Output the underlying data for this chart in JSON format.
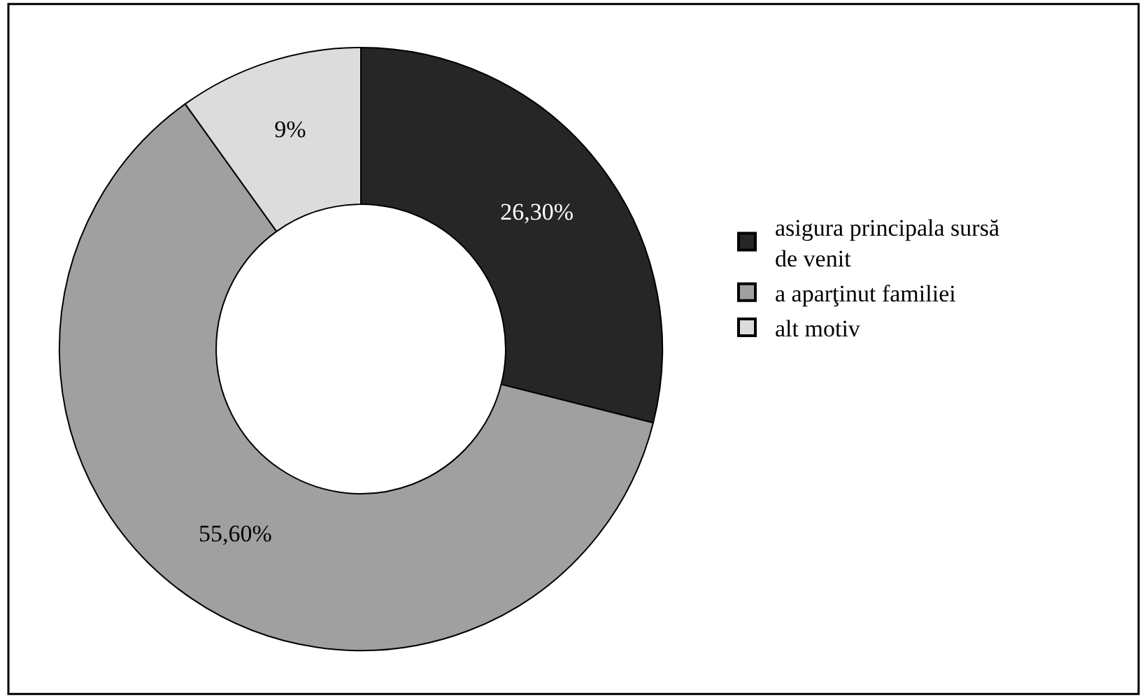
{
  "chart_data": {
    "type": "donut",
    "categories": [
      "asigura principala sursă de venit",
      "a aparţinut familiei",
      "alt motiv"
    ],
    "values": [
      26.3,
      55.6,
      9
    ],
    "value_labels": [
      "26,30%",
      "55,60%",
      "9%"
    ],
    "colors": [
      "#262626",
      "#a0a0a0",
      "#dcdcdc"
    ],
    "legend": "right"
  }
}
